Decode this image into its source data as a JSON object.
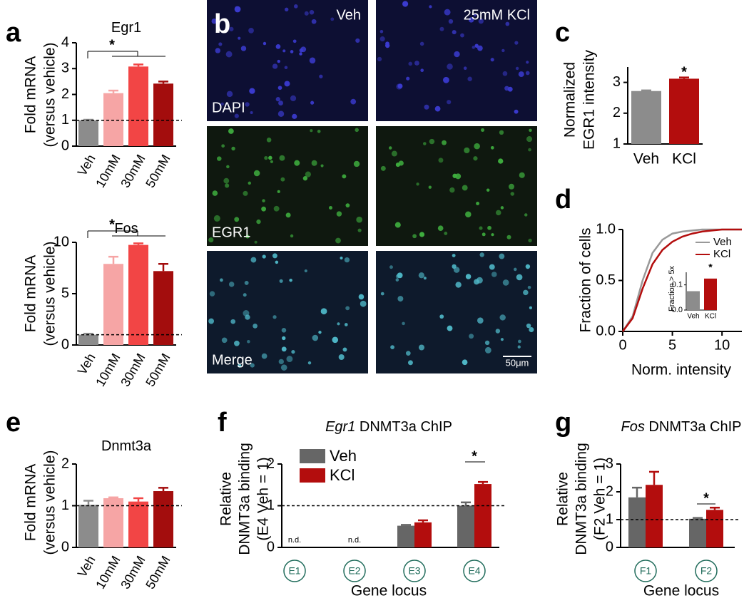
{
  "micrographs": {
    "panel": "b",
    "columns": [
      "Veh",
      "25mM KCl"
    ],
    "rows": [
      "DAPI",
      "EGR1",
      "Merge"
    ],
    "scale_bar": "50μm"
  },
  "chart_data": [
    {
      "panel": "a",
      "type": "bar",
      "title": "Egr1",
      "ylabel": [
        "Fold mRNA",
        "(versus vehicle)"
      ],
      "categories": [
        "Veh",
        "10mM",
        "30mM",
        "50mM"
      ],
      "values": [
        1,
        2.05,
        3.08,
        2.42
      ],
      "errors": [
        0.02,
        0.1,
        0.08,
        0.08
      ],
      "colors": [
        "#8c8c8c",
        "#f6a5a5",
        "#f24545",
        "#a30d0d"
      ],
      "ylim": [
        0,
        4
      ],
      "yticks": [
        0,
        1,
        2,
        3,
        4
      ],
      "reference_line": 1,
      "significance": "*"
    },
    {
      "type": "bar",
      "title": "Fos",
      "ylabel": [
        "Fold mRNA",
        "(versus vehicle)"
      ],
      "categories": [
        "Veh",
        "10mM",
        "30mM",
        "50mM"
      ],
      "values": [
        1,
        7.9,
        9.75,
        7.2
      ],
      "errors": [
        0.1,
        0.7,
        0.15,
        0.7
      ],
      "colors": [
        "#8c8c8c",
        "#f6a5a5",
        "#f24545",
        "#a30d0d"
      ],
      "ylim": [
        0,
        10
      ],
      "yticks": [
        0,
        5,
        10
      ],
      "reference_line": 1,
      "significance": "*"
    },
    {
      "panel": "c",
      "type": "bar",
      "ylabel": [
        "Normalized",
        "EGR1 intensity"
      ],
      "categories": [
        "Veh",
        "KCl"
      ],
      "values": [
        2.72,
        3.12
      ],
      "errors": [
        0.02,
        0.04
      ],
      "colors": [
        "#8c8c8c",
        "#b30d0d"
      ],
      "ylim": [
        1,
        3.5
      ],
      "yticks": [
        1,
        2,
        3
      ],
      "significance": "*"
    },
    {
      "panel": "d",
      "type": "line",
      "ylabel": [
        "Fraction of cells"
      ],
      "xlabel": "Norm. intensity",
      "x": [
        0,
        1,
        2,
        3,
        4,
        5,
        6,
        7,
        8,
        9,
        10,
        11,
        12
      ],
      "series": [
        {
          "name": "Veh",
          "color": "#999999",
          "values": [
            0,
            0.15,
            0.5,
            0.77,
            0.9,
            0.96,
            0.98,
            0.99,
            1,
            1,
            1,
            1,
            1
          ]
        },
        {
          "name": "KCl",
          "color": "#b30d0d",
          "values": [
            0,
            0.13,
            0.42,
            0.66,
            0.8,
            0.88,
            0.93,
            0.96,
            0.98,
            0.99,
            1,
            1,
            1
          ]
        }
      ],
      "xlim": [
        0,
        12
      ],
      "ylim": [
        0,
        1
      ],
      "xticks": [
        0,
        5,
        10
      ],
      "yticks": [
        {
          "value": 0,
          "label": "0.0"
        },
        {
          "value": 0.5,
          "label": "0.5"
        },
        {
          "value": 1,
          "label": "1.0"
        }
      ],
      "legend": "upper right",
      "inset": {
        "type": "bar",
        "ylabel": [
          "Fraction > 5x"
        ],
        "categories": [
          "Veh",
          "KCl"
        ],
        "values": [
          0.075,
          0.125
        ],
        "colors": [
          "#8c8c8c",
          "#b30d0d"
        ],
        "ylim": [
          0,
          0.15
        ],
        "yticks": [
          {
            "value": 0,
            "label": "0.0"
          },
          0.1
        ],
        "significance": "*"
      }
    },
    {
      "panel": "e",
      "type": "bar",
      "title": "Dnmt3a",
      "ylabel": [
        "Fold mRNA",
        "(versus vehicle)"
      ],
      "categories": [
        "Veh",
        "10mM",
        "30mM",
        "50mM"
      ],
      "values": [
        1.02,
        1.18,
        1.1,
        1.35
      ],
      "errors": [
        0.1,
        0.02,
        0.08,
        0.08
      ],
      "colors": [
        "#8c8c8c",
        "#f6a5a5",
        "#f24545",
        "#a30d0d"
      ],
      "ylim": [
        0,
        2
      ],
      "yticks": [
        0,
        1,
        2
      ],
      "reference_line": 1
    },
    {
      "panel": "f",
      "type": "bar",
      "title_gene": "Egr1",
      "title": " DNMT3a ChIP",
      "ylabel": [
        "Relative",
        "DNMT3a binding",
        "(E4 Veh = 1)"
      ],
      "xlabel": "Gene locus",
      "categories": [
        "E1",
        "E2",
        "E3",
        "E4"
      ],
      "category_notes": [
        "n.d.",
        "n.d.",
        null,
        null
      ],
      "series": [
        {
          "name": "Veh",
          "color": "#666666",
          "values": [
            null,
            null,
            0.52,
            1.0
          ],
          "errors": [
            null,
            null,
            0.02,
            0.08
          ]
        },
        {
          "name": "KCl",
          "color": "#b30d0d",
          "values": [
            null,
            null,
            0.6,
            1.52
          ],
          "errors": [
            null,
            null,
            0.05,
            0.05
          ]
        }
      ],
      "ylim": [
        0,
        2
      ],
      "yticks": [
        0,
        1,
        2
      ],
      "reference_line": 1,
      "legend": "upper left",
      "significance": "*"
    },
    {
      "panel": "g",
      "type": "bar",
      "title_gene": "Fos",
      "title": " DNMT3a ChIP",
      "ylabel": [
        "Relative",
        "DNMT3a binding",
        "(F2 Veh = 1)"
      ],
      "xlabel": "Gene locus",
      "categories": [
        "F1",
        "F2"
      ],
      "series": [
        {
          "name": "Veh",
          "color": "#666666",
          "values": [
            1.8,
            1.03
          ],
          "errors": [
            0.35,
            0.03
          ]
        },
        {
          "name": "KCl",
          "color": "#b30d0d",
          "values": [
            2.25,
            1.35
          ],
          "errors": [
            0.47,
            0.08
          ]
        }
      ],
      "ylim": [
        0,
        3
      ],
      "yticks": [
        0,
        1,
        2,
        3
      ],
      "reference_line": 1,
      "significance": "*"
    }
  ]
}
